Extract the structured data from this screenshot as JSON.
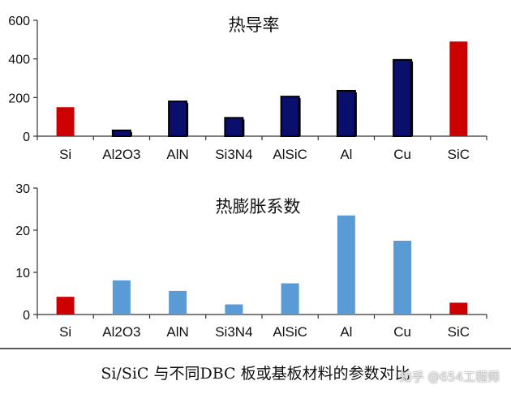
{
  "chart_data": [
    {
      "type": "bar",
      "title": "热导率",
      "categories": [
        "Si",
        "Al2O3",
        "AlN",
        "Si3N4",
        "AlSiC",
        "Al",
        "Cu",
        "SiC"
      ],
      "values": [
        150,
        30,
        180,
        95,
        205,
        235,
        395,
        490
      ],
      "bar_colors": [
        "#cc0000",
        "#0a0f6e",
        "#0a0f6e",
        "#0a0f6e",
        "#0a0f6e",
        "#0a0f6e",
        "#0a0f6e",
        "#cc0000"
      ],
      "ylim": [
        0,
        600
      ],
      "yticks": [
        0,
        200,
        400,
        600
      ],
      "grid": false,
      "legend": "none"
    },
    {
      "type": "bar",
      "title": "热膨胀系数",
      "categories": [
        "Si",
        "Al2O3",
        "AlN",
        "Si3N4",
        "AlSiC",
        "Al",
        "Cu",
        "SiC"
      ],
      "values": [
        4.2,
        8.1,
        5.6,
        2.4,
        7.4,
        23.5,
        17.5,
        2.8
      ],
      "bar_colors": [
        "#cc0000",
        "#5b9bd5",
        "#5b9bd5",
        "#5b9bd5",
        "#5b9bd5",
        "#5b9bd5",
        "#5b9bd5",
        "#cc0000"
      ],
      "ylim": [
        0,
        30
      ],
      "yticks": [
        0,
        10,
        20,
        30
      ],
      "grid": false,
      "legend": "none"
    }
  ],
  "caption": "Si/SiC 与不同DBC 板或基板材料的参数对比",
  "watermark": "知乎 @654工程师"
}
